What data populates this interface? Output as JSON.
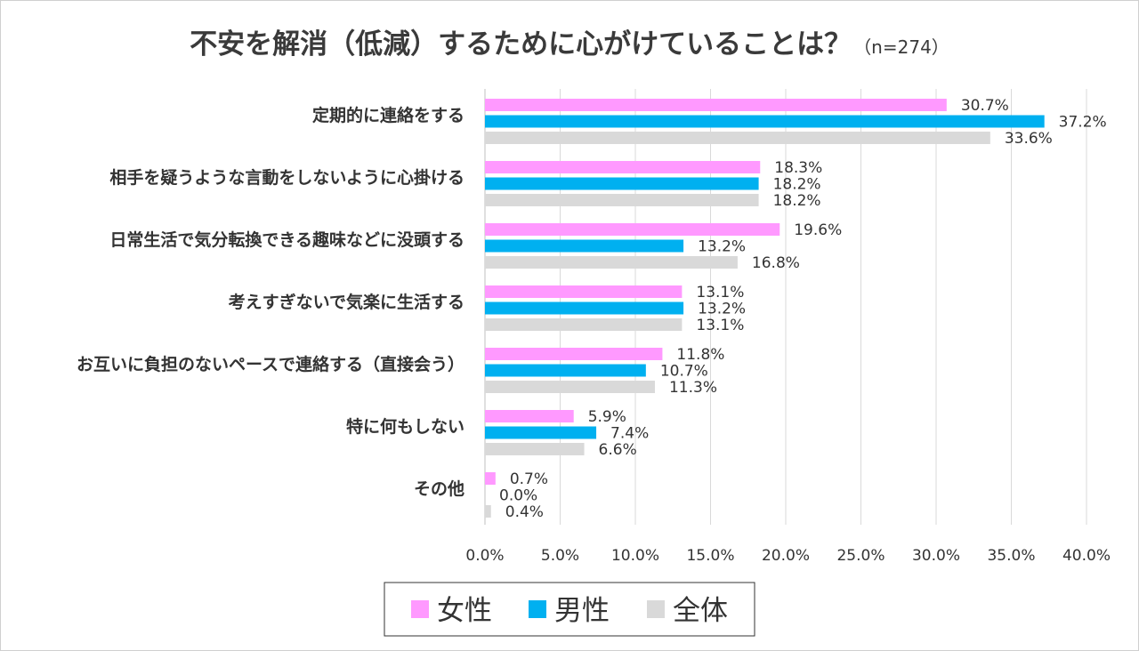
{
  "chart_data": {
    "type": "bar",
    "orientation": "horizontal",
    "title": "不安を解消（低減）するために心がけていることは？",
    "subtitle": "（n=274）",
    "categories": [
      "定期的に連絡をする",
      "相手を疑うような言動をしないように心掛ける",
      "日常生活で気分転換できる趣味などに没頭する",
      "考えすぎないで気楽に生活する",
      "お互いに負担のないペースで連絡する（直接会う）",
      "特に何もしない",
      "その他"
    ],
    "series": [
      {
        "name": "女性",
        "color": "#ff99ff",
        "values": [
          30.7,
          18.3,
          19.6,
          13.1,
          11.8,
          5.9,
          0.7
        ],
        "labels": [
          "30.7%",
          "18.3%",
          "19.6%",
          "13.1%",
          "11.8%",
          "5.9%",
          "0.7%"
        ]
      },
      {
        "name": "男性",
        "color": "#00b0f0",
        "values": [
          37.2,
          18.2,
          13.2,
          13.2,
          10.7,
          7.4,
          0.0
        ],
        "labels": [
          "37.2%",
          "18.2%",
          "13.2%",
          "13.2%",
          "10.7%",
          "7.4%",
          "0.0%"
        ]
      },
      {
        "name": "全体",
        "color": "#d9d9d9",
        "values": [
          33.6,
          18.2,
          16.8,
          13.1,
          11.3,
          6.6,
          0.4
        ],
        "labels": [
          "33.6%",
          "18.2%",
          "16.8%",
          "13.1%",
          "11.3%",
          "6.6%",
          "0.4%"
        ]
      }
    ],
    "xlim": [
      0,
      40
    ],
    "xticks": [
      0,
      5,
      10,
      15,
      20,
      25,
      30,
      35,
      40
    ],
    "xtick_labels": [
      "0.0%",
      "5.0%",
      "10.0%",
      "15.0%",
      "20.0%",
      "25.0%",
      "30.0%",
      "35.0%",
      "40.0%"
    ],
    "grid": true,
    "legend_position": "bottom-center"
  }
}
